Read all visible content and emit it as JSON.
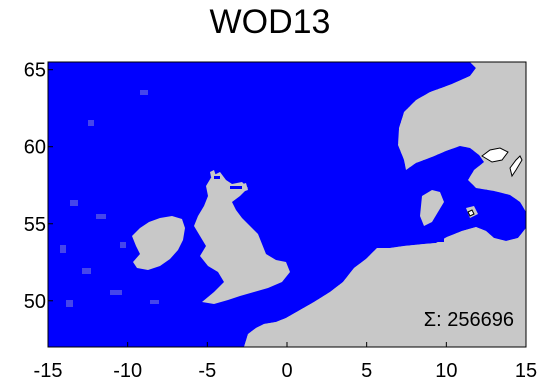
{
  "title": "WOD13",
  "count_label": "Σ: 256696",
  "colors": {
    "land": "#c8c8c8",
    "lake": "#ffffff",
    "data": "#0000ff",
    "frame": "#000000"
  },
  "chart_data": {
    "type": "map",
    "title": "WOD13",
    "projection": "lat-lon",
    "xlim": [
      -15,
      15
    ],
    "ylim": [
      47,
      65.5
    ],
    "x_ticks": [
      -15,
      -10,
      -5,
      0,
      5,
      10,
      15
    ],
    "x_tick_labels": [
      "-15",
      "-10",
      "-5",
      "0",
      "5",
      "10",
      "15"
    ],
    "y_ticks": [
      50,
      55,
      60,
      65
    ],
    "y_tick_labels": [
      "50",
      "55",
      "60",
      "65"
    ],
    "total_count": 256696,
    "marker": "plus",
    "marker_color": "#0000ff"
  }
}
